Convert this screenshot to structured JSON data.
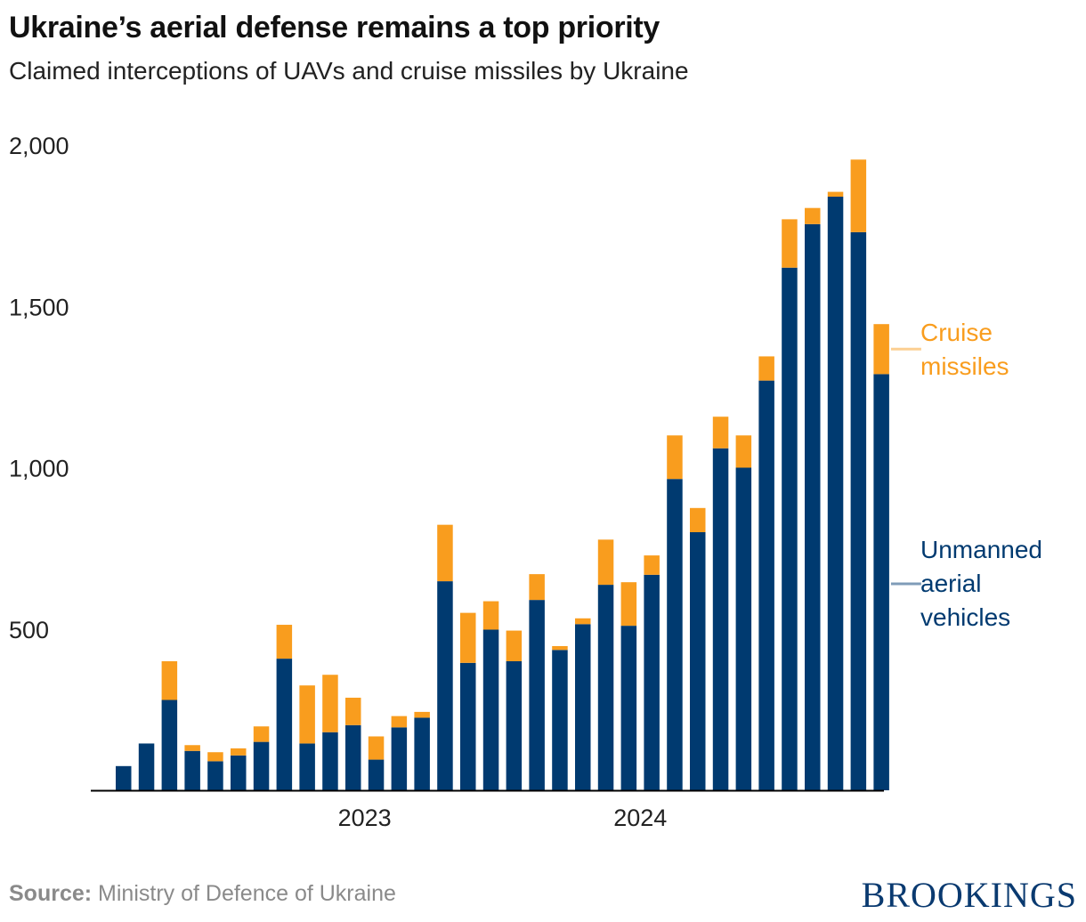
{
  "title": "Ukraine’s aerial defense remains a top priority",
  "subtitle": "Claimed interceptions of UAVs and cruise missiles by Ukraine",
  "source_label": "Source:",
  "source_text": "Ministry of Defence of Ukraine",
  "brand": "BROOKINGS",
  "chart_data": {
    "type": "bar",
    "stacked": true,
    "ylim": [
      0,
      2000
    ],
    "yticks": [
      500,
      1000,
      1500,
      2000
    ],
    "ytick_labels": [
      "500",
      "1,000",
      "1,500",
      "2,000"
    ],
    "x_tick_labels": [
      {
        "label": "2023",
        "at_bar": 10.5
      },
      {
        "label": "2024",
        "at_bar": 22.5
      }
    ],
    "grid": false,
    "colors": {
      "uav": "#003a70",
      "cruise": "#f99d1e",
      "uav_leader": "#7f9cb8",
      "cruise_leader": "#fccf92"
    },
    "series": [
      {
        "name": "Unmanned aerial vehicles",
        "label_lines": [
          "Unmanned",
          "aerial",
          "vehicles"
        ],
        "values": [
          75,
          145,
          280,
          122,
          90,
          108,
          150,
          408,
          145,
          180,
          202,
          95,
          195,
          225,
          648,
          395,
          498,
          400,
          590,
          435,
          515,
          637,
          510,
          668,
          965,
          800,
          1060,
          1000,
          1270,
          1620,
          1755,
          1840,
          1730,
          1290
        ]
      },
      {
        "name": "Cruise missiles",
        "label_lines": [
          "Cruise",
          "missiles"
        ],
        "values": [
          0,
          0,
          120,
          18,
          28,
          22,
          48,
          105,
          180,
          178,
          85,
          72,
          35,
          18,
          175,
          155,
          88,
          95,
          80,
          12,
          18,
          140,
          135,
          60,
          135,
          75,
          98,
          100,
          75,
          150,
          50,
          15,
          225,
          155
        ]
      }
    ]
  }
}
